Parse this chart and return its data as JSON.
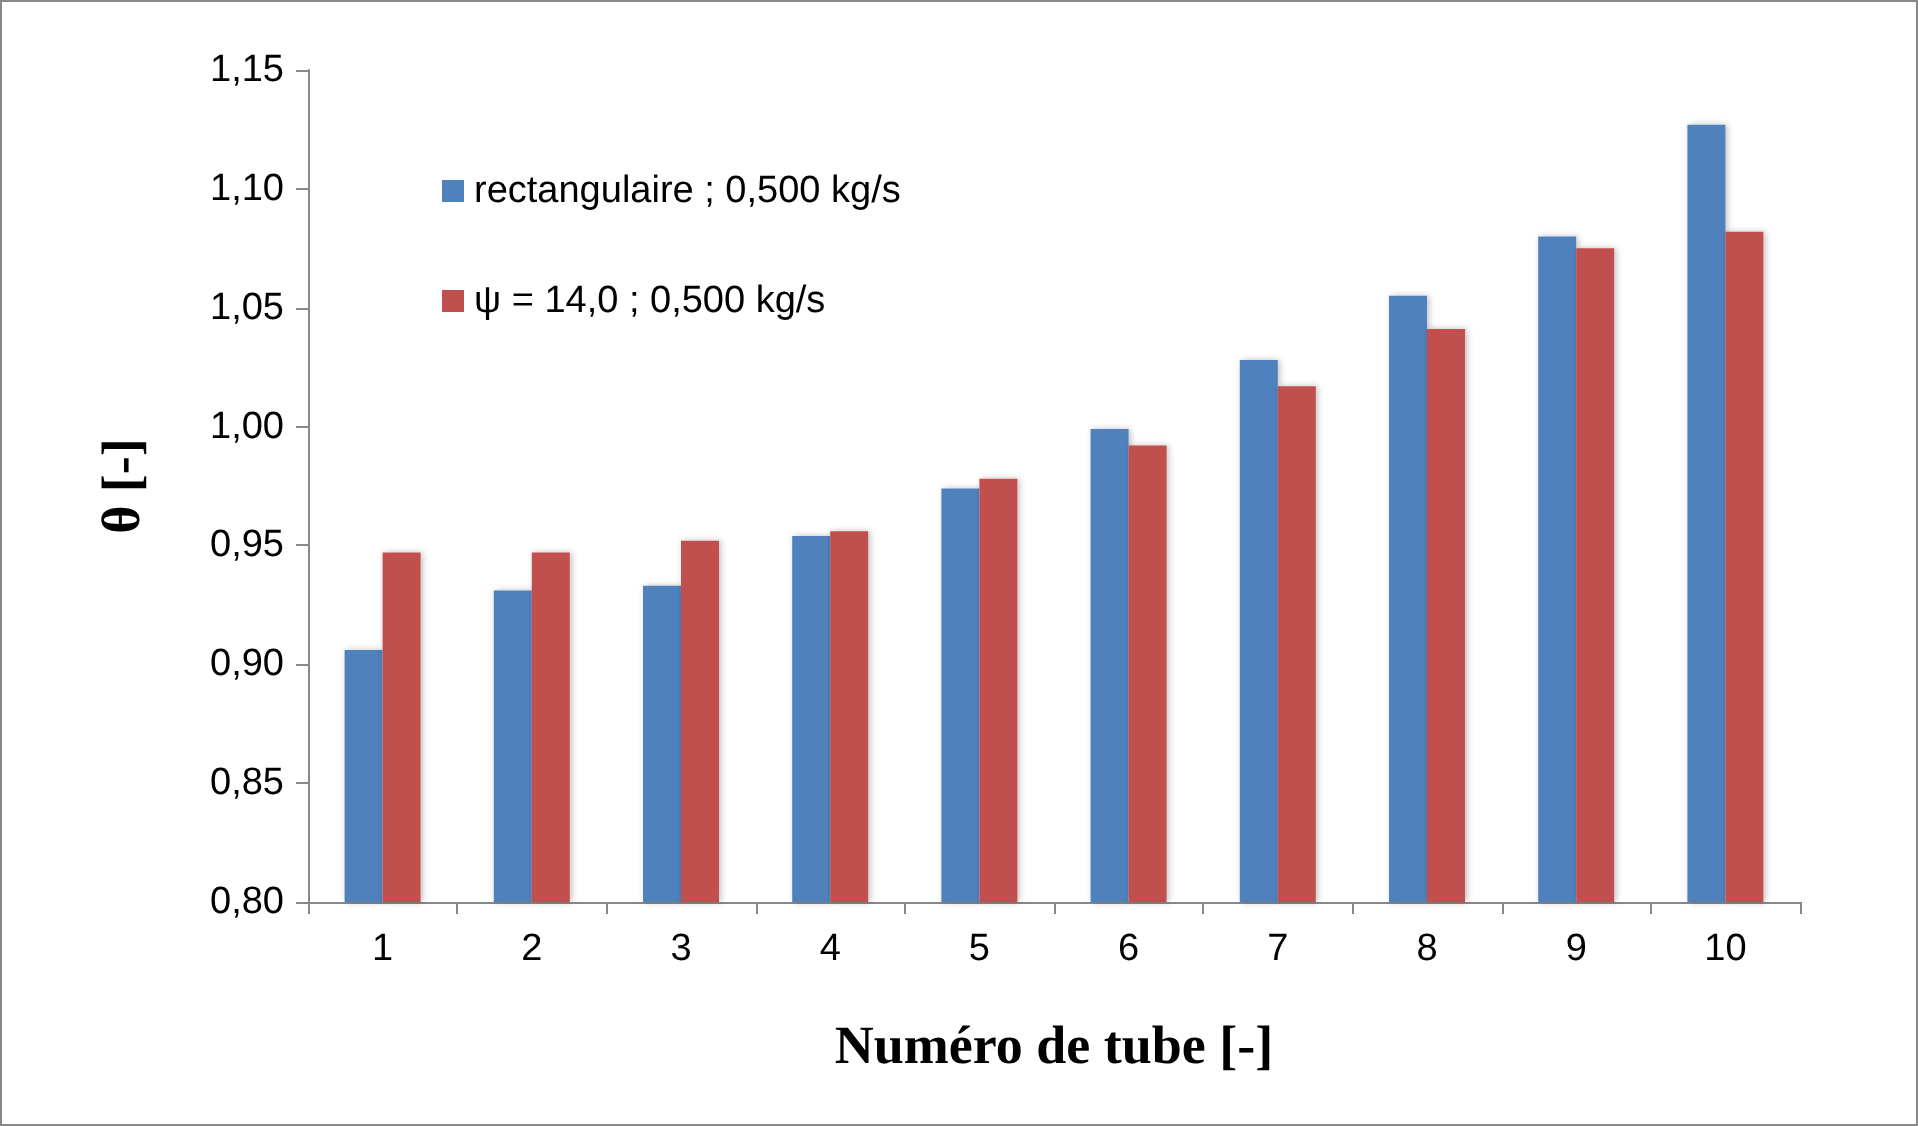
{
  "chart_data": {
    "type": "bar",
    "xlabel": "Numéro de tube [-]",
    "ylabel": "θ [-]",
    "categories": [
      "1",
      "2",
      "3",
      "4",
      "5",
      "6",
      "7",
      "8",
      "9",
      "10"
    ],
    "series": [
      {
        "name": "rectangulaire ; 0,500 kg/s",
        "color": "#4f81bd",
        "values": [
          0.906,
          0.931,
          0.933,
          0.954,
          0.974,
          0.999,
          1.028,
          1.055,
          1.08,
          1.127
        ]
      },
      {
        "name": "ψ = 14,0 ; 0,500 kg/s",
        "color": "#c0504d",
        "values": [
          0.947,
          0.947,
          0.952,
          0.956,
          0.978,
          0.992,
          1.017,
          1.041,
          1.075,
          1.082
        ]
      }
    ],
    "ylim": [
      0.8,
      1.15
    ],
    "yticks": [
      {
        "value": 0.8,
        "label": "0,80"
      },
      {
        "value": 0.85,
        "label": "0,85"
      },
      {
        "value": 0.9,
        "label": "0,90"
      },
      {
        "value": 0.95,
        "label": "0,95"
      },
      {
        "value": 1.0,
        "label": "1,00"
      },
      {
        "value": 1.05,
        "label": "1,05"
      },
      {
        "value": 1.1,
        "label": "1,10"
      },
      {
        "value": 1.15,
        "label": "1,15"
      }
    ],
    "grid": false,
    "legend": "top left"
  }
}
